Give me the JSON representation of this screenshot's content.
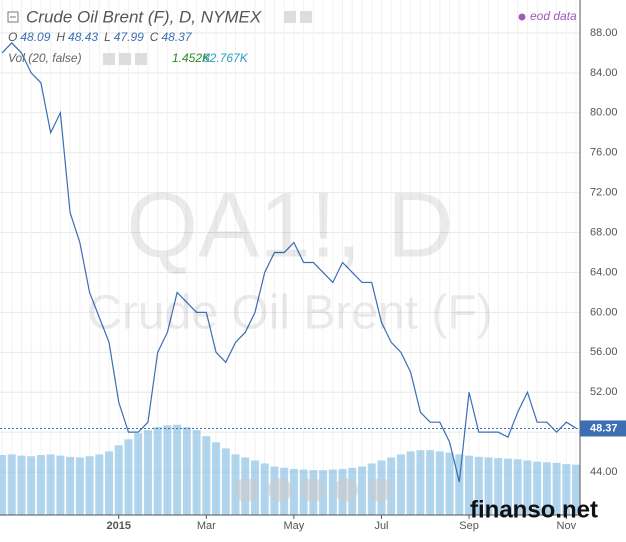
{
  "chart_data": {
    "type": "line",
    "title": "Crude Oil Brent (F), D, NYMEX",
    "ohlc": [
      {
        "label": "O",
        "value": 48.09
      },
      {
        "label": "H",
        "value": 48.43
      },
      {
        "label": "L",
        "value": 47.99
      },
      {
        "label": "C",
        "value": 48.37
      }
    ],
    "volume_indicator": {
      "name": "Vol (20, false)",
      "values": [
        "1.452K",
        "82.767K"
      ]
    },
    "source": "eod data",
    "watermark": [
      "QA1!, D",
      "Crude Oil Brent (F)"
    ],
    "brand": "finanso.net",
    "last_value": 48.37,
    "color": "#3c6eb4",
    "categories": [
      null,
      null,
      null,
      null,
      null,
      null,
      null,
      null,
      null,
      null,
      null,
      null,
      "2015",
      null,
      null,
      null,
      null,
      null,
      null,
      null,
      null,
      "Mar",
      null,
      null,
      null,
      null,
      null,
      null,
      null,
      null,
      "May",
      null,
      null,
      null,
      null,
      null,
      null,
      null,
      null,
      "Jul",
      null,
      null,
      null,
      null,
      null,
      null,
      null,
      null,
      "Sep",
      null,
      null,
      null,
      null,
      null,
      null,
      null,
      null,
      null,
      "Nov",
      null
    ],
    "values": [
      86,
      87,
      86,
      84,
      83,
      78,
      80,
      70,
      67,
      62,
      59.5,
      57,
      51,
      48,
      48,
      49,
      56,
      58,
      62,
      61,
      60,
      60,
      56,
      55,
      57,
      58,
      60,
      64,
      66,
      66,
      67,
      65,
      65,
      64,
      63,
      65,
      64,
      63,
      63,
      59,
      57,
      56,
      54,
      50,
      49,
      49,
      47,
      43,
      52,
      48,
      48,
      48,
      47.5,
      50,
      52,
      49,
      49,
      48,
      49,
      48.4
    ],
    "volume": {
      "color": "#8fc3e6",
      "axis": "y2",
      "values": [
        99,
        100,
        98,
        97,
        99,
        100,
        98,
        96,
        95,
        97,
        100,
        105,
        115,
        125,
        135,
        140,
        145,
        148,
        149,
        145,
        140,
        130,
        120,
        110,
        100,
        95,
        90,
        85,
        80,
        78,
        76,
        75,
        74,
        74,
        75,
        76,
        78,
        80,
        85,
        90,
        95,
        100,
        105,
        107,
        107,
        105,
        103,
        100,
        98,
        96,
        95,
        94,
        93,
        92,
        90,
        88,
        87,
        86,
        84,
        83
      ]
    },
    "ylim": [
      39.7,
      91.3
    ],
    "y2lim": [
      0,
      850
    ],
    "yticks": [
      {
        "value": 44,
        "label": "44.00"
      },
      {
        "value": 48,
        "label": "48.00"
      },
      {
        "value": 52,
        "label": "52.00"
      },
      {
        "value": 56,
        "label": "56.00"
      },
      {
        "value": 60,
        "label": "60.00"
      },
      {
        "value": 64,
        "label": "64.00"
      },
      {
        "value": 68,
        "label": "68.00"
      },
      {
        "value": 72,
        "label": "72.00"
      },
      {
        "value": 76,
        "label": "76.00"
      },
      {
        "value": 80,
        "label": "80.00"
      },
      {
        "value": 84,
        "label": "84.00"
      },
      {
        "value": 88,
        "label": "88.00"
      }
    ],
    "grid": true
  }
}
